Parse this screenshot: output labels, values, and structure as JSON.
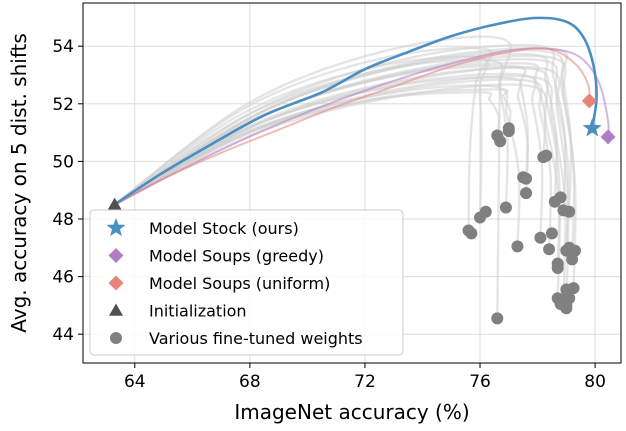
{
  "chart_data": {
    "type": "scatter",
    "xlabel": "ImageNet accuracy (%)",
    "ylabel": "Avg. accuracy on 5 dist. shifts",
    "xlim": [
      62.2,
      80.9
    ],
    "ylim": [
      43.0,
      55.5
    ],
    "xticks": [
      64,
      68,
      72,
      76,
      80
    ],
    "yticks": [
      44,
      46,
      48,
      50,
      52,
      54
    ],
    "grid": true,
    "legend_position": "lower-left",
    "colors": {
      "model_stock": "#4a8ec2",
      "soups_greedy": "#b07cc6",
      "soups_uniform": "#e8837a",
      "initialization": "#505050",
      "fine_tuned": "#808080",
      "trajectory": "#d0d0d0"
    },
    "legend": [
      {
        "key": "model_stock",
        "label": "Model Stock (ours)",
        "marker": "star",
        "color": "#4a8ec2"
      },
      {
        "key": "soups_greedy",
        "label": "Model Soups (greedy)",
        "marker": "diamond",
        "color": "#b07cc6"
      },
      {
        "key": "soups_uniform",
        "label": "Model Soups (uniform)",
        "marker": "diamond",
        "color": "#e8837a"
      },
      {
        "key": "initialization",
        "label": "Initialization",
        "marker": "triangle",
        "color": "#505050"
      },
      {
        "key": "fine_tuned",
        "label": "Various fine-tuned weights",
        "marker": "circle",
        "color": "#808080"
      }
    ],
    "initialization": {
      "x": 63.3,
      "y": 48.5
    },
    "model_stock": {
      "x": 79.9,
      "y": 51.15
    },
    "soups_greedy": {
      "x": 80.45,
      "y": 50.85
    },
    "soups_uniform": {
      "x": 79.8,
      "y": 52.1
    },
    "model_stock_curve": [
      [
        63.3,
        48.5
      ],
      [
        64.8,
        49.5
      ],
      [
        66.5,
        50.5
      ],
      [
        68.5,
        51.6
      ],
      [
        70.5,
        52.4
      ],
      [
        72.0,
        53.2
      ],
      [
        73.5,
        53.8
      ],
      [
        75.0,
        54.35
      ],
      [
        76.5,
        54.75
      ],
      [
        77.9,
        54.98
      ],
      [
        79.0,
        54.85
      ],
      [
        79.6,
        54.3
      ],
      [
        79.95,
        53.3
      ],
      [
        80.05,
        52.2
      ],
      [
        79.9,
        51.15
      ]
    ],
    "greedy_curve": [
      [
        63.3,
        48.5
      ],
      [
        65.0,
        49.4
      ],
      [
        67.0,
        50.4
      ],
      [
        69.0,
        51.3
      ],
      [
        71.0,
        52.1
      ],
      [
        73.0,
        52.8
      ],
      [
        75.0,
        53.4
      ],
      [
        77.0,
        53.85
      ],
      [
        78.5,
        53.9
      ],
      [
        79.5,
        53.6
      ],
      [
        80.15,
        52.7
      ],
      [
        80.45,
        51.4
      ],
      [
        80.45,
        50.85
      ]
    ],
    "uniform_curve": [
      [
        63.3,
        48.5
      ],
      [
        65.0,
        49.4
      ],
      [
        67.0,
        50.3
      ],
      [
        69.0,
        51.1
      ],
      [
        71.0,
        51.9
      ],
      [
        73.0,
        52.6
      ],
      [
        75.0,
        53.3
      ],
      [
        77.0,
        53.8
      ],
      [
        78.4,
        53.9
      ],
      [
        79.3,
        53.4
      ],
      [
        79.75,
        52.7
      ],
      [
        79.8,
        52.1
      ]
    ],
    "fine_tuned_points": [
      [
        76.6,
        44.55
      ],
      [
        75.6,
        47.6
      ],
      [
        75.7,
        47.5
      ],
      [
        76.0,
        48.05
      ],
      [
        76.2,
        48.25
      ],
      [
        76.9,
        48.4
      ],
      [
        77.3,
        47.05
      ],
      [
        77.6,
        48.9
      ],
      [
        77.6,
        49.4
      ],
      [
        77.5,
        49.45
      ],
      [
        76.6,
        50.9
      ],
      [
        76.7,
        50.7
      ],
      [
        77.0,
        51.05
      ],
      [
        77.0,
        51.15
      ],
      [
        78.2,
        50.15
      ],
      [
        78.3,
        50.2
      ],
      [
        78.1,
        47.35
      ],
      [
        78.4,
        46.95
      ],
      [
        78.5,
        47.5
      ],
      [
        78.6,
        48.6
      ],
      [
        78.8,
        48.75
      ],
      [
        78.7,
        46.3
      ],
      [
        78.7,
        46.45
      ],
      [
        78.9,
        48.3
      ],
      [
        79.1,
        48.25
      ],
      [
        79.0,
        46.9
      ],
      [
        79.1,
        47.0
      ],
      [
        79.2,
        46.6
      ],
      [
        79.3,
        46.9
      ],
      [
        78.7,
        45.25
      ],
      [
        78.8,
        45.05
      ],
      [
        78.9,
        45.2
      ],
      [
        79.0,
        45.0
      ],
      [
        79.0,
        44.9
      ],
      [
        79.1,
        45.25
      ],
      [
        79.0,
        45.55
      ],
      [
        79.25,
        45.6
      ]
    ],
    "trajectories": [
      {
        "peak": [
          76.8,
          54.25
        ],
        "end": [
          76.6,
          44.55
        ]
      },
      {
        "peak": [
          76.2,
          53.9
        ],
        "end": [
          75.6,
          47.6
        ]
      },
      {
        "peak": [
          76.0,
          53.6
        ],
        "end": [
          76.0,
          48.05
        ]
      },
      {
        "peak": [
          76.4,
          53.5
        ],
        "end": [
          76.9,
          48.4
        ]
      },
      {
        "peak": [
          76.5,
          52.6
        ],
        "end": [
          77.3,
          47.05
        ]
      },
      {
        "peak": [
          76.0,
          52.4
        ],
        "end": [
          76.6,
          50.9
        ]
      },
      {
        "peak": [
          76.6,
          52.5
        ],
        "end": [
          77.0,
          51.1
        ]
      },
      {
        "peak": [
          77.2,
          53.3
        ],
        "end": [
          77.6,
          49.4
        ]
      },
      {
        "peak": [
          77.0,
          52.9
        ],
        "end": [
          77.6,
          48.9
        ]
      },
      {
        "peak": [
          77.6,
          53.4
        ],
        "end": [
          78.2,
          50.15
        ]
      },
      {
        "peak": [
          77.5,
          53.0
        ],
        "end": [
          78.1,
          47.35
        ]
      },
      {
        "peak": [
          77.9,
          53.7
        ],
        "end": [
          78.6,
          48.6
        ]
      },
      {
        "peak": [
          77.7,
          52.8
        ],
        "end": [
          78.4,
          46.95
        ]
      },
      {
        "peak": [
          78.1,
          54.0
        ],
        "end": [
          78.9,
          48.3
        ]
      },
      {
        "peak": [
          77.9,
          53.2
        ],
        "end": [
          78.7,
          46.3
        ]
      },
      {
        "peak": [
          78.2,
          53.5
        ],
        "end": [
          79.0,
          46.9
        ]
      },
      {
        "peak": [
          78.4,
          53.8
        ],
        "end": [
          79.2,
          46.6
        ]
      },
      {
        "peak": [
          77.8,
          52.6
        ],
        "end": [
          78.7,
          45.25
        ]
      },
      {
        "peak": [
          78.0,
          52.9
        ],
        "end": [
          78.9,
          45.2
        ]
      },
      {
        "peak": [
          78.3,
          53.2
        ],
        "end": [
          79.0,
          45.0
        ]
      },
      {
        "peak": [
          78.5,
          53.6
        ],
        "end": [
          79.25,
          45.6
        ]
      },
      {
        "peak": [
          78.6,
          53.9
        ],
        "end": [
          79.1,
          48.25
        ]
      }
    ]
  }
}
